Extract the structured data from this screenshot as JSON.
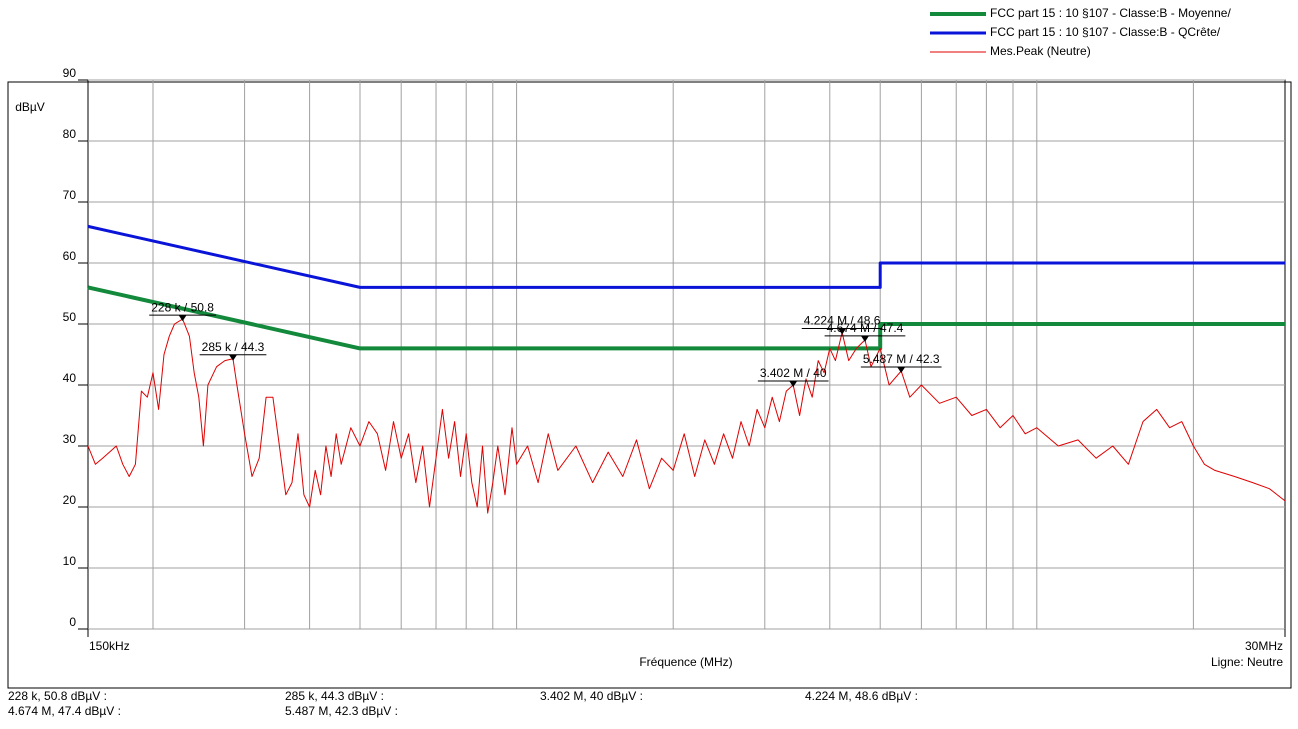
{
  "chart_data": {
    "type": "line",
    "y_label": "dBµV",
    "x_label": "Fréquence (MHz)",
    "line_note": "Ligne: Neutre",
    "xscale": "log",
    "xlim": [
      0.15,
      30
    ],
    "ylim": [
      0,
      90
    ],
    "xticks": [
      {
        "value": 0.15,
        "label": "150kHz"
      },
      {
        "value": 30,
        "label": "30MHz"
      }
    ],
    "xgrid": [
      0.2,
      0.3,
      0.4,
      0.5,
      0.6,
      0.7,
      0.8,
      0.9,
      1,
      2,
      3,
      4,
      5,
      6,
      7,
      8,
      9,
      10,
      20
    ],
    "yticks": [
      0,
      10,
      20,
      30,
      40,
      50,
      60,
      70,
      80,
      90
    ],
    "grid": true,
    "legend": "top-right",
    "series": [
      {
        "name": "FCC part 15 : 10 §107 - Classe:B - Moyenne/",
        "color": "#13893c",
        "width": 4,
        "x": [
          0.15,
          0.5,
          5,
          5,
          30
        ],
        "values": [
          56,
          46,
          46,
          50,
          50
        ]
      },
      {
        "name": "FCC part 15 : 10 §107 - Classe:B - QCrête/",
        "color": "#0a14d8",
        "width": 3,
        "x": [
          0.15,
          0.5,
          5,
          5,
          30
        ],
        "values": [
          66,
          56,
          56,
          60,
          60
        ]
      },
      {
        "name": "Mes.Peak (Neutre)",
        "color": "#e00000",
        "width": 1,
        "x": [
          0.15,
          0.155,
          0.16,
          0.165,
          0.17,
          0.175,
          0.18,
          0.185,
          0.19,
          0.195,
          0.2,
          0.205,
          0.21,
          0.215,
          0.22,
          0.228,
          0.235,
          0.24,
          0.245,
          0.25,
          0.255,
          0.265,
          0.275,
          0.285,
          0.29,
          0.3,
          0.31,
          0.32,
          0.33,
          0.34,
          0.35,
          0.36,
          0.37,
          0.38,
          0.39,
          0.4,
          0.41,
          0.42,
          0.43,
          0.44,
          0.45,
          0.46,
          0.48,
          0.5,
          0.52,
          0.54,
          0.56,
          0.58,
          0.6,
          0.62,
          0.64,
          0.66,
          0.68,
          0.7,
          0.72,
          0.74,
          0.76,
          0.78,
          0.8,
          0.82,
          0.84,
          0.86,
          0.88,
          0.9,
          0.92,
          0.95,
          0.98,
          1.0,
          1.05,
          1.1,
          1.15,
          1.2,
          1.3,
          1.4,
          1.5,
          1.6,
          1.7,
          1.8,
          1.9,
          2.0,
          2.1,
          2.2,
          2.3,
          2.4,
          2.5,
          2.6,
          2.7,
          2.8,
          2.9,
          3.0,
          3.1,
          3.2,
          3.3,
          3.402,
          3.5,
          3.6,
          3.7,
          3.8,
          3.9,
          4.0,
          4.1,
          4.224,
          4.35,
          4.5,
          4.674,
          4.8,
          5.0,
          5.2,
          5.487,
          5.7,
          6.0,
          6.5,
          7,
          7.5,
          8,
          8.5,
          9,
          9.5,
          10,
          11,
          12,
          13,
          14,
          15,
          16,
          17,
          18,
          19,
          20,
          21,
          22,
          24,
          26,
          28,
          30
        ],
        "values": [
          30,
          27,
          28,
          29,
          30,
          27,
          25,
          27,
          39,
          38,
          42,
          36,
          45,
          48,
          50,
          50.8,
          48,
          42,
          38,
          30,
          40,
          43,
          44,
          44.3,
          40,
          32,
          25,
          28,
          38,
          38,
          30,
          22,
          24,
          32,
          22,
          20,
          26,
          22,
          30,
          25,
          32,
          27,
          33,
          30,
          34,
          32,
          26,
          34,
          28,
          32,
          24,
          30,
          20,
          28,
          36,
          28,
          34,
          25,
          32,
          24,
          20,
          30,
          19,
          24,
          30,
          22,
          33,
          27,
          30,
          24,
          32,
          26,
          30,
          24,
          29,
          25,
          31,
          23,
          28,
          26,
          32,
          25,
          31,
          27,
          32,
          28,
          34,
          30,
          36,
          33,
          38,
          34,
          39,
          40,
          35,
          41,
          38,
          44,
          42,
          46,
          44,
          48.6,
          44,
          46,
          47.4,
          43,
          46,
          40,
          42.3,
          38,
          40,
          37,
          38,
          35,
          36,
          33,
          35,
          32,
          33,
          30,
          31,
          28,
          30,
          27,
          34,
          36,
          33,
          34,
          30,
          27,
          26,
          25,
          24,
          23,
          21
        ]
      }
    ],
    "markers": [
      {
        "label": "228 k / 50.8",
        "x": 0.228,
        "y": 50.8,
        "readout": "228 k, 50.8 dBµV :"
      },
      {
        "label": "285 k / 44.3",
        "x": 0.285,
        "y": 44.3,
        "readout": "285 k, 44.3 dBµV :"
      },
      {
        "label": "3.402 M / 40",
        "x": 3.402,
        "y": 40,
        "readout": "3.402 M, 40 dBµV :"
      },
      {
        "label": "4.224 M / 48.6",
        "x": 4.224,
        "y": 48.6,
        "readout": "4.224 M, 48.6 dBµV :"
      },
      {
        "label": "4.674 M / 47.4",
        "x": 4.674,
        "y": 47.4,
        "readout": "4.674 M, 47.4 dBµV :"
      },
      {
        "label": "5.487 M / 42.3",
        "x": 5.487,
        "y": 42.3,
        "readout": "5.487 M, 42.3 dBµV :"
      }
    ]
  }
}
